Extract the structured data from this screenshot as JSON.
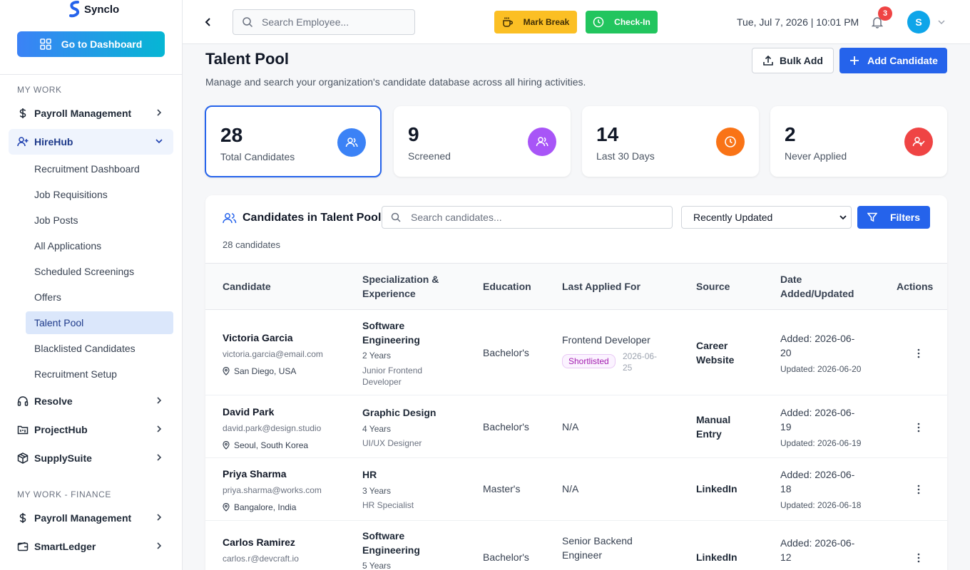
{
  "app": {
    "name": "Synclo"
  },
  "sidebar": {
    "dashboard_button": "Go to Dashboard",
    "section_work": "MY WORK",
    "section_finance": "MY WORK - FINANCE",
    "items": [
      {
        "label": "Payroll Management"
      },
      {
        "label": "HireHub"
      },
      {
        "label": "Resolve"
      },
      {
        "label": "ProjectHub"
      },
      {
        "label": "SupplySuite"
      },
      {
        "label": "Payroll Management"
      },
      {
        "label": "SmartLedger"
      }
    ],
    "hirehub_sub": [
      {
        "label": "Recruitment Dashboard"
      },
      {
        "label": "Job Requisitions"
      },
      {
        "label": "Job Posts"
      },
      {
        "label": "All Applications"
      },
      {
        "label": "Scheduled Screenings"
      },
      {
        "label": "Offers"
      },
      {
        "label": "Talent Pool"
      },
      {
        "label": "Blacklisted Candidates"
      },
      {
        "label": "Recruitment Setup"
      }
    ]
  },
  "topbar": {
    "search_placeholder": "Search Employee...",
    "mark_break": "Mark Break",
    "check_in": "Check-In",
    "datetime": "Tue, Jul 7, 2026 | 10:01 PM",
    "notification_count": "3",
    "avatar_initial": "S"
  },
  "page": {
    "title": "Talent Pool",
    "description": "Manage and search your organization's candidate database across all hiring activities.",
    "bulk_add": "Bulk Add",
    "add_candidate": "Add Candidate"
  },
  "stats": [
    {
      "value": "28",
      "label": "Total Candidates",
      "color": "#3b82f6"
    },
    {
      "value": "9",
      "label": "Screened",
      "color": "#a855f7"
    },
    {
      "value": "14",
      "label": "Last 30 Days",
      "color": "#f97316"
    },
    {
      "value": "2",
      "label": "Never Applied",
      "color": "#ef4444"
    }
  ],
  "table": {
    "title": "Candidates in Talent Pool",
    "count": "28 candidates",
    "search_placeholder": "Search candidates...",
    "sort": "Recently Updated",
    "filters": "Filters",
    "headers": {
      "candidate": "Candidate",
      "spec1": "Specialization &",
      "spec2": "Experience",
      "education": "Education",
      "last_applied": "Last Applied For",
      "source": "Source",
      "date1": "Date",
      "date2": "Added/Updated",
      "actions": "Actions"
    },
    "rows": [
      {
        "name": "Victoria Garcia",
        "email": "victoria.garcia@email.com",
        "location": "San Diego, USA",
        "spec1": "Software",
        "spec2": "Engineering",
        "years": "2 Years",
        "role1": "Junior Frontend",
        "role2": "Developer",
        "education": "Bachelor's",
        "applied": "Frontend Developer",
        "status": "Shortlisted",
        "applied_date1": "2026-06-",
        "applied_date2": "25",
        "source1": "Career",
        "source2": "Website",
        "added1": "Added: 2026-06-",
        "added2": "20",
        "updated": "Updated: 2026-06-20"
      },
      {
        "name": "David Park",
        "email": "david.park@design.studio",
        "location": "Seoul, South Korea",
        "spec1": "Graphic Design",
        "years": "4 Years",
        "role1": "UI/UX Designer",
        "education": "Bachelor's",
        "applied": "N/A",
        "source1": "Manual",
        "source2": "Entry",
        "added1": "Added: 2026-06-",
        "added2": "19",
        "updated": "Updated: 2026-06-19"
      },
      {
        "name": "Priya Sharma",
        "email": "priya.sharma@works.com",
        "location": "Bangalore, India",
        "spec1": "HR",
        "years": "3 Years",
        "role1": "HR Specialist",
        "education": "Master's",
        "applied": "N/A",
        "source1": "LinkedIn",
        "added1": "Added: 2026-06-",
        "added2": "18",
        "updated": "Updated: 2026-06-18"
      },
      {
        "name": "Carlos Ramirez",
        "email": "carlos.r@devcraft.io",
        "spec1": "Software",
        "spec2": "Engineering",
        "years": "5 Years",
        "education": "Bachelor's",
        "applied1": "Senior Backend",
        "applied2": "Engineer",
        "source1": "LinkedIn",
        "added1": "Added: 2026-06-",
        "added2": "12"
      }
    ]
  }
}
